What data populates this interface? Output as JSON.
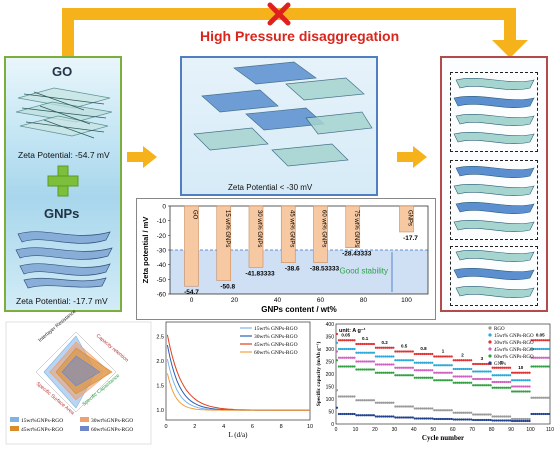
{
  "header": {
    "title": "High Pressure disaggregation",
    "cross_color": "#e0201c",
    "arrow_color": "#f5b21b"
  },
  "left_panel": {
    "go_label": "GO",
    "go_zeta": "Zeta Potential: -54.7 mV",
    "gnps_label": "GNPs",
    "gnps_zeta": "Zeta Potential: -17.7 mV",
    "plus_icon": "plus-icon",
    "border_color": "#7cae3b"
  },
  "center_panel": {
    "zeta_label": "Zeta Potential < -30 mV",
    "border_color": "#4f7fc0"
  },
  "right_panel": {
    "border_color": "#b44a4a"
  },
  "zeta_chart": {
    "chart_data": {
      "type": "bar",
      "x": [
        0,
        15,
        30,
        45,
        60,
        75,
        100
      ],
      "series_labels": [
        "GO",
        "15 wt% GNPs",
        "30 wt% GNPs",
        "45 wt% GNPs",
        "60 wt% GNPs",
        "75 wt% GNPs",
        "GNPs"
      ],
      "values": [
        -54.7,
        -50.8,
        -41.83333,
        -38.6,
        -38.53333,
        -28.43333,
        -17.7
      ],
      "value_labels": [
        "-54.7",
        "-50.8",
        "-41.83333",
        "-38.6",
        "-38.53333",
        "-28.43333",
        "-17.7"
      ],
      "xlabel": "GNPs content / wt%",
      "ylabel": "Zeta potential / mV",
      "yticks": [
        "0",
        "-10",
        "-20",
        "-30",
        "-40",
        "-50",
        "-60"
      ],
      "xticks": [
        "0",
        "20",
        "40",
        "60",
        "80",
        "100"
      ],
      "ylim": [
        -60,
        0
      ],
      "xlim": [
        -10,
        110
      ],
      "stability_threshold": -30,
      "annotation": "Good stability",
      "bar_color": "#f7c9a3",
      "band_color": "#cfe0f5"
    }
  },
  "radar_chart": {
    "axis_labels": [
      "Interlayer Resistance",
      "Capacity retention",
      "Specific Surface Area",
      "Specific Capacitance"
    ],
    "legend": [
      "15wt%GNPs-RGO",
      "30wt%GNPs-RGO",
      "45wt%GNPs-RGO",
      "60wt%GNPs-RGO"
    ],
    "colors": [
      "#7fb3e6",
      "#f0a070",
      "#d98c2a",
      "#6f86c8"
    ]
  },
  "decay_chart": {
    "chart_data": {
      "type": "line",
      "xlabel": "L (d/a)",
      "xticks": [
        "0",
        "2",
        "4",
        "6",
        "8",
        "10"
      ],
      "yticks": [
        "1.0",
        "1.5",
        "2.0",
        "2.5"
      ],
      "xlim": [
        0,
        10
      ],
      "ylim": [
        0.8,
        2.8
      ],
      "series": [
        {
          "name": "15wt% GNPs-RGO",
          "color": "#7fb3e6",
          "start": 2.2,
          "rate": 1.4
        },
        {
          "name": "30wt% GNPs-RGO",
          "color": "#2b5fb5",
          "start": 2.5,
          "rate": 1.2
        },
        {
          "name": "45wt% GNPs-RGO",
          "color": "#e0401c",
          "start": 2.7,
          "rate": 1.0
        },
        {
          "name": "60wt% GNPs-RGO",
          "color": "#f0a040",
          "start": 1.9,
          "rate": 1.8
        }
      ]
    }
  },
  "rate_chart": {
    "chart_data": {
      "type": "scatter",
      "unit_label": "unit: A g⁻¹",
      "ylabel": "Specific capacity (mAh g⁻¹)",
      "xlabel": "Cycle number",
      "xticks": [
        "0",
        "10",
        "20",
        "30",
        "40",
        "50",
        "60",
        "70",
        "80",
        "90",
        "100",
        "110"
      ],
      "yticks": [
        "0",
        "50",
        "100",
        "150",
        "200",
        "250",
        "300",
        "350",
        "400"
      ],
      "xlim": [
        0,
        110
      ],
      "ylim": [
        0,
        400
      ],
      "rate_labels": [
        "0.05",
        "0.1",
        "0.2",
        "0.5",
        "0.8",
        "1",
        "2",
        "3",
        "5",
        "10",
        "0.05"
      ],
      "series": [
        {
          "name": "RGO",
          "color": "#999999",
          "levels": [
            110,
            95,
            85,
            70,
            62,
            55,
            45,
            38,
            30,
            20,
            105
          ]
        },
        {
          "name": "15wt% GNPs-RGO",
          "color": "#2aa8d8",
          "levels": [
            300,
            285,
            270,
            255,
            245,
            235,
            220,
            210,
            195,
            175,
            300
          ]
        },
        {
          "name": "30wt% GNPs-RGO",
          "color": "#e03030",
          "levels": [
            335,
            320,
            305,
            290,
            280,
            270,
            255,
            240,
            225,
            205,
            335
          ]
        },
        {
          "name": "45wt% GNPs-RGO",
          "color": "#d060c0",
          "levels": [
            265,
            250,
            238,
            225,
            215,
            205,
            190,
            180,
            168,
            150,
            265
          ]
        },
        {
          "name": "60wt% GNPs-RGO",
          "color": "#30a040",
          "levels": [
            230,
            218,
            205,
            195,
            185,
            175,
            165,
            155,
            145,
            130,
            230
          ]
        },
        {
          "name": "GNPs",
          "color": "#1f3f8f",
          "levels": [
            40,
            35,
            30,
            26,
            22,
            20,
            18,
            16,
            14,
            12,
            40
          ]
        }
      ]
    }
  }
}
